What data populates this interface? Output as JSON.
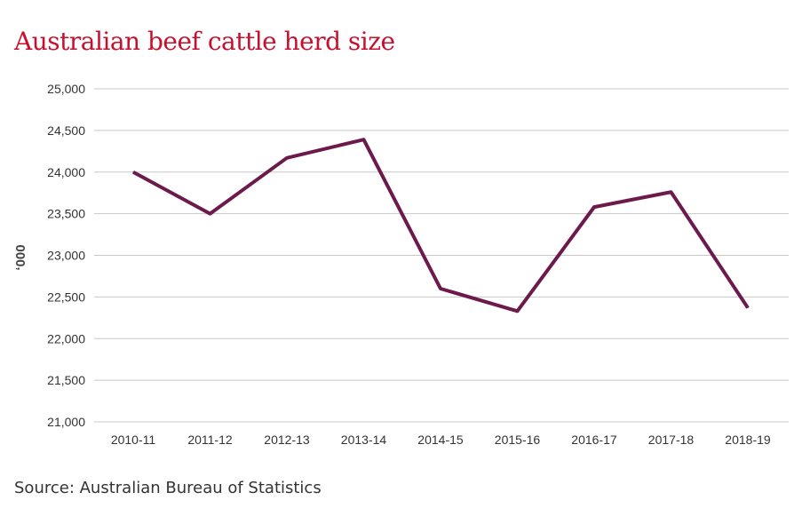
{
  "chart_data": {
    "type": "line",
    "title": "Australian beef cattle herd size",
    "ylabel": "‘000",
    "xlabel": "",
    "categories": [
      "2010-11",
      "2011-12",
      "2012-13",
      "2013-14",
      "2014-15",
      "2015-16",
      "2016-17",
      "2017-18",
      "2018-19"
    ],
    "series": [
      {
        "values": [
          24000,
          23500,
          24170,
          24390,
          22600,
          22330,
          23580,
          23760,
          22370
        ]
      }
    ],
    "ylim": [
      21000,
      25000
    ],
    "yticks": [
      21000,
      21500,
      22000,
      22500,
      23000,
      23500,
      24000,
      24500,
      25000
    ],
    "grid": true,
    "line_color": "#6b1a4b",
    "grid_color": "#c8c8c8",
    "source": "Source: Australian Bureau of Statistics"
  }
}
